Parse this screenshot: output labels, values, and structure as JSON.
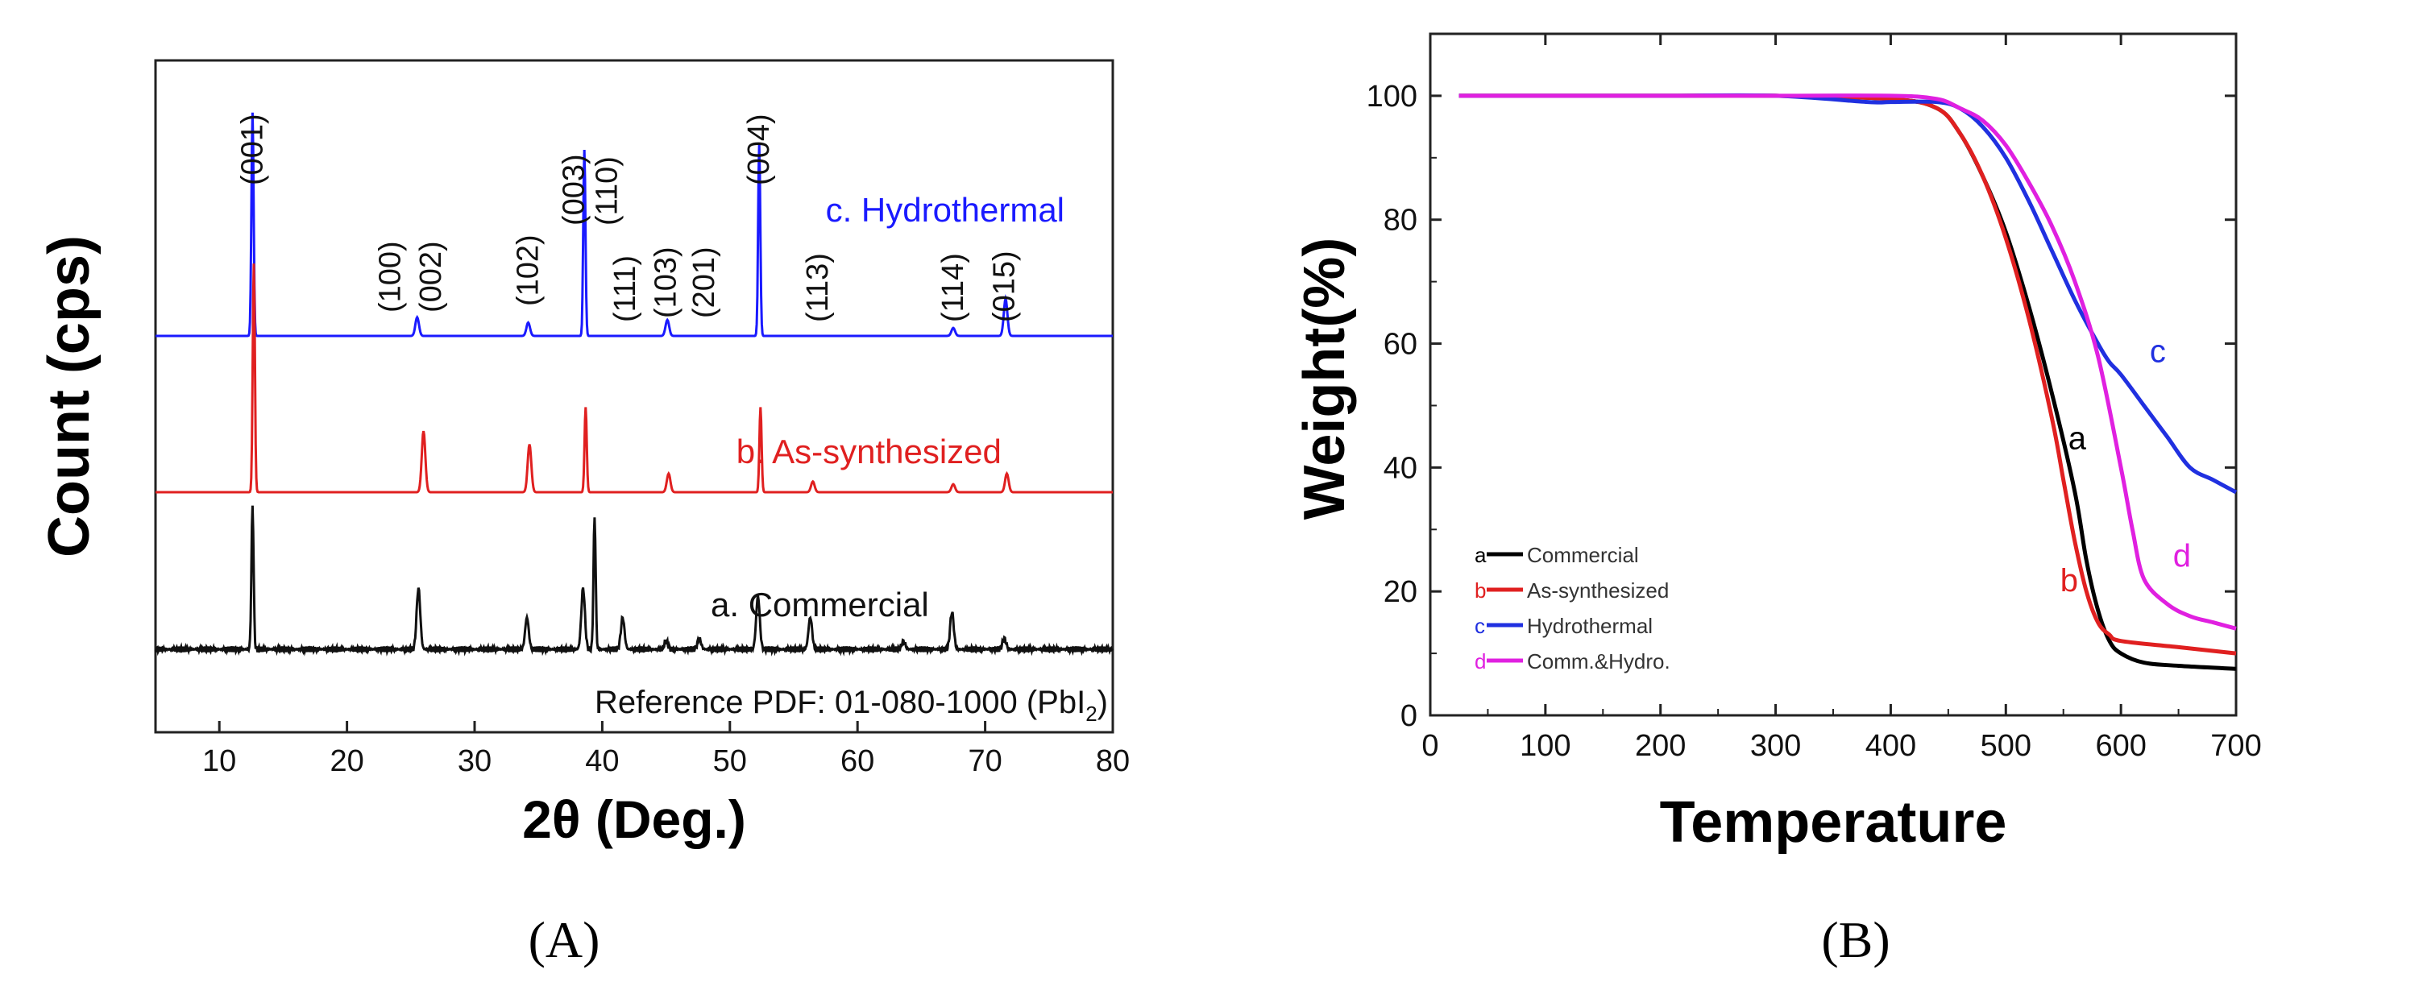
{
  "chart_data": [
    {
      "type": "line",
      "panel_label": "(A)",
      "xlabel_prefix": "2θ",
      "xlabel_suffix": " (Deg.)",
      "ylabel": "Count (cps)",
      "xlim": [
        5,
        80
      ],
      "x_ticks": [
        10,
        20,
        30,
        40,
        50,
        60,
        70,
        80
      ],
      "y_ticks_shown": false,
      "series": [
        {
          "name": "c. Hydrothermal",
          "color": "#1a1aff",
          "baseline_offset": 2.0,
          "peaks": [
            {
              "x": 12.6,
              "h": 0.84
            },
            {
              "x": 25.5,
              "h": 0.07
            },
            {
              "x": 34.2,
              "h": 0.05
            },
            {
              "x": 38.6,
              "h": 0.7
            },
            {
              "x": 45.1,
              "h": 0.06
            },
            {
              "x": 52.3,
              "h": 0.72
            },
            {
              "x": 67.5,
              "h": 0.03
            },
            {
              "x": 71.6,
              "h": 0.14
            }
          ]
        },
        {
          "name": "b. As-synthesized",
          "color": "#e02020",
          "baseline_offset": 1.0,
          "peaks": [
            {
              "x": 12.7,
              "h": 0.86
            },
            {
              "x": 26.0,
              "h": 0.23
            },
            {
              "x": 34.3,
              "h": 0.18
            },
            {
              "x": 38.7,
              "h": 0.32
            },
            {
              "x": 45.2,
              "h": 0.07
            },
            {
              "x": 52.4,
              "h": 0.32
            },
            {
              "x": 56.5,
              "h": 0.04
            },
            {
              "x": 67.5,
              "h": 0.03
            },
            {
              "x": 71.7,
              "h": 0.07
            }
          ]
        },
        {
          "name": "a. Commercial",
          "color": "#111111",
          "baseline_offset": 0.0,
          "peaks": [
            {
              "x": 12.6,
              "h": 0.54
            },
            {
              "x": 25.6,
              "h": 0.23
            },
            {
              "x": 34.1,
              "h": 0.12
            },
            {
              "x": 38.5,
              "h": 0.23
            },
            {
              "x": 39.4,
              "h": 0.5
            },
            {
              "x": 41.6,
              "h": 0.12
            },
            {
              "x": 45.0,
              "h": 0.03
            },
            {
              "x": 47.6,
              "h": 0.04
            },
            {
              "x": 52.2,
              "h": 0.2
            },
            {
              "x": 56.3,
              "h": 0.12
            },
            {
              "x": 63.6,
              "h": 0.03
            },
            {
              "x": 67.4,
              "h": 0.14
            },
            {
              "x": 71.5,
              "h": 0.04
            }
          ]
        }
      ],
      "miller_labels": [
        {
          "text": "(001)",
          "x": 12.6
        },
        {
          "text": "(100)",
          "x": 23.4
        },
        {
          "text": "(002)",
          "x": 26.6
        },
        {
          "text": "(102)",
          "x": 34.2
        },
        {
          "text": "(003)",
          "x": 37.8
        },
        {
          "text": "(110)",
          "x": 40.4
        },
        {
          "text": "(111)",
          "x": 41.8
        },
        {
          "text": "(103)",
          "x": 45.0
        },
        {
          "text": "(201)",
          "x": 48.0
        },
        {
          "text": "(004)",
          "x": 52.3
        },
        {
          "text": "(113)",
          "x": 56.9
        },
        {
          "text": "(114)",
          "x": 67.5
        },
        {
          "text": "(015)",
          "x": 71.5
        }
      ],
      "reference_text": "Reference PDF: 01-080-1000 (PbI",
      "reference_subscript": "2",
      "reference_close": ")"
    },
    {
      "type": "line",
      "panel_label": "(B)",
      "xlabel": "Temperature",
      "ylabel": "Weight(%)",
      "xlim": [
        0,
        700
      ],
      "ylim": [
        0,
        110
      ],
      "x_ticks": [
        0,
        100,
        200,
        300,
        400,
        500,
        600,
        700
      ],
      "y_ticks": [
        0,
        20,
        40,
        60,
        80,
        100
      ],
      "legend_position": "bottom-left",
      "series": [
        {
          "letter": "a",
          "name": "Commercial",
          "color": "#000000",
          "x": [
            25,
            100,
            200,
            300,
            400,
            440,
            460,
            480,
            500,
            520,
            540,
            560,
            570,
            580,
            590,
            600,
            620,
            650,
            700
          ],
          "y": [
            100,
            100,
            100,
            100,
            99.5,
            98,
            94,
            87,
            78,
            66,
            52,
            36,
            25,
            17,
            12,
            10,
            8.5,
            8,
            7.5
          ]
        },
        {
          "letter": "b",
          "name": "As-synthesized",
          "color": "#e02020",
          "x": [
            25,
            100,
            200,
            300,
            400,
            440,
            460,
            480,
            500,
            520,
            540,
            550,
            560,
            570,
            580,
            590,
            600,
            650,
            700
          ],
          "y": [
            100,
            100,
            100,
            100,
            99.5,
            98,
            94,
            87,
            77,
            64,
            48,
            38,
            28,
            20,
            15,
            13,
            12,
            11,
            10
          ]
        },
        {
          "letter": "c",
          "name": "Hydrothermal",
          "color": "#2030e0",
          "x": [
            25,
            100,
            200,
            300,
            380,
            400,
            440,
            460,
            480,
            500,
            520,
            540,
            560,
            580,
            590,
            600,
            620,
            640,
            660,
            680,
            700
          ],
          "y": [
            100,
            100,
            100,
            100,
            99,
            99,
            99,
            98,
            95,
            90,
            83,
            75,
            67,
            60,
            57,
            55,
            50,
            45,
            40,
            38,
            36
          ]
        },
        {
          "letter": "d",
          "name": "Comm.&Hydro.",
          "color": "#e020e0",
          "x": [
            25,
            100,
            200,
            300,
            400,
            440,
            460,
            480,
            500,
            520,
            540,
            560,
            580,
            600,
            610,
            620,
            640,
            660,
            680,
            700
          ],
          "y": [
            100,
            100,
            100,
            100,
            100,
            99.5,
            98,
            96,
            92,
            86,
            79,
            70,
            58,
            40,
            30,
            22,
            18,
            16,
            15,
            14
          ]
        }
      ],
      "curve_labels": [
        {
          "text": "a",
          "x": 562,
          "y": 43
        },
        {
          "text": "b",
          "x": 555,
          "y": 20
        },
        {
          "text": "c",
          "x": 632,
          "y": 57
        },
        {
          "text": "d",
          "x": 653,
          "y": 24
        }
      ]
    }
  ]
}
